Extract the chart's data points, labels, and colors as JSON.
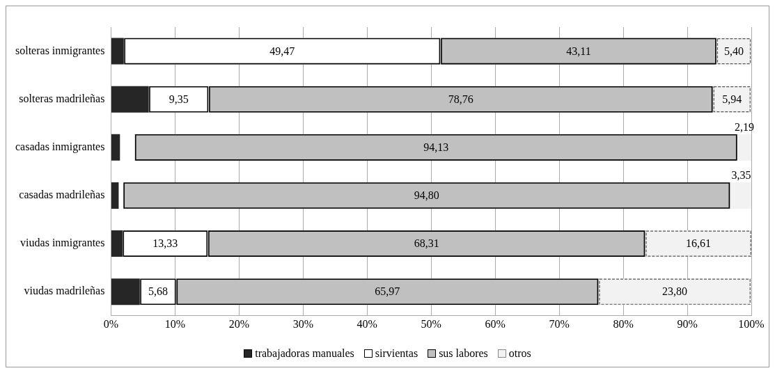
{
  "chart_data": {
    "type": "bar",
    "orientation": "horizontal",
    "stacked": true,
    "categories": [
      "solteras inmigrantes",
      "solteras madrileñas",
      "casadas inmigrantes",
      "casadas madrileñas",
      "viudas inmigrantes",
      "viudas madrileñas"
    ],
    "series": [
      {
        "name": "trabajadoras manuales",
        "color": "#262626",
        "values": [
          2,
          5.9,
          1.4,
          1.2,
          1.8,
          4.5
        ],
        "value_labels": [
          null,
          null,
          null,
          null,
          null,
          null
        ]
      },
      {
        "name": "sirvientas",
        "color": "#ffffff",
        "values": [
          49.47,
          9.35,
          2.3,
          0.7,
          13.33,
          5.68
        ],
        "value_labels": [
          "49,47",
          "9,35",
          null,
          null,
          "13,33",
          "5,68"
        ]
      },
      {
        "name": "sus labores",
        "color": "#c0c0c0",
        "values": [
          43.11,
          78.76,
          94.13,
          94.8,
          68.31,
          65.97
        ],
        "value_labels": [
          "43,11",
          "78,76",
          "94,13",
          "94,80",
          "68,31",
          "65,97"
        ]
      },
      {
        "name": "otros",
        "color": "#f2f2f2",
        "line_style": "dashed",
        "values": [
          5.4,
          5.94,
          2.19,
          3.35,
          16.61,
          23.8
        ],
        "value_labels": [
          "5,40",
          "5,94",
          "2,19",
          "3,35",
          "16,61",
          "23,80"
        ]
      }
    ],
    "xlim": [
      0,
      100
    ],
    "xticks": [
      {
        "value": 0,
        "label": "0%"
      },
      {
        "value": 10,
        "label": "10%"
      },
      {
        "value": 20,
        "label": "20%"
      },
      {
        "value": 30,
        "label": "30%"
      },
      {
        "value": 40,
        "label": "40%"
      },
      {
        "value": 50,
        "label": "50%"
      },
      {
        "value": 60,
        "label": "60%"
      },
      {
        "value": 70,
        "label": "70%"
      },
      {
        "value": 80,
        "label": "80%"
      },
      {
        "value": 90,
        "label": "90%"
      },
      {
        "value": 100,
        "label": "100%"
      }
    ],
    "grid": "x",
    "legend": "bottom"
  }
}
